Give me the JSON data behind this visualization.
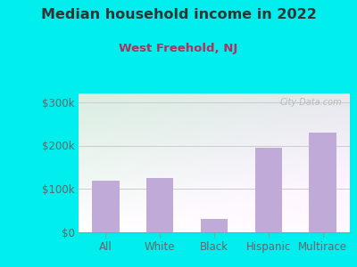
{
  "title": "Median household income in 2022",
  "subtitle": "West Freehold, NJ",
  "categories": [
    "All",
    "White",
    "Black",
    "Hispanic",
    "Multirace"
  ],
  "values": [
    120000,
    125000,
    30000,
    195000,
    230000
  ],
  "bar_color": "#c0aad8",
  "title_color": "#333333",
  "subtitle_color": "#b03060",
  "background_outer": "#00eeee",
  "tick_color": "#666666",
  "ylim": [
    0,
    320000
  ],
  "yticks": [
    0,
    100000,
    200000,
    300000
  ],
  "ytick_labels": [
    "$0",
    "$100k",
    "$200k",
    "$300k"
  ],
  "watermark": "City-Data.com",
  "bar_width": 0.5,
  "grid_color": "#cccccc"
}
